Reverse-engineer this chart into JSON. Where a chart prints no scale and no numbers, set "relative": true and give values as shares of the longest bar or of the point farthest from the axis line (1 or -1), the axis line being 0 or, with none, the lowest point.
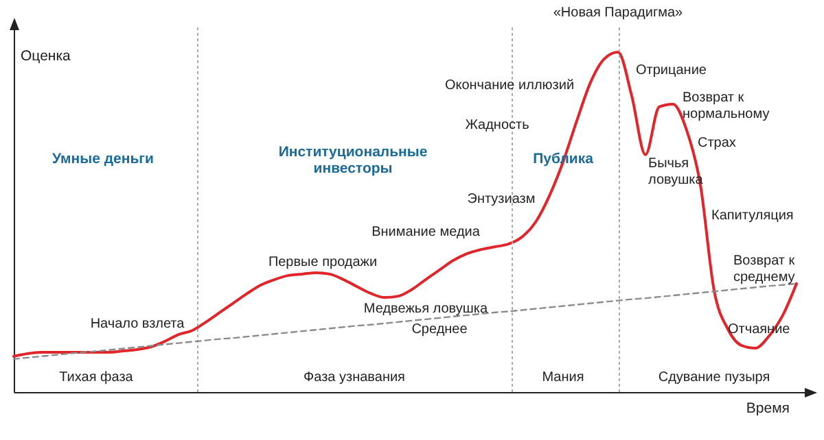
{
  "chart_data": {
    "type": "line",
    "relative": true,
    "xlabel": "Время",
    "ylabel": "Оценка",
    "categories": [
      null,
      null,
      null,
      null,
      null,
      null,
      null,
      null,
      null,
      null,
      null,
      null,
      null,
      null,
      null,
      null,
      null,
      null,
      null,
      null,
      null,
      null,
      null,
      null,
      null,
      null,
      null,
      null,
      null,
      null,
      null,
      null,
      null,
      null,
      null,
      null,
      null,
      null,
      null,
      null,
      null,
      null,
      null,
      null,
      null,
      null,
      null,
      null,
      null,
      null,
      null,
      null,
      null,
      null,
      null,
      null,
      null,
      null
    ],
    "series": [
      {
        "color": "#e0252b",
        "line_style": "solid",
        "values": [
          0.105,
          0.113,
          0.117,
          0.117,
          0.117,
          0.117,
          0.117,
          0.117,
          0.121,
          0.125,
          0.133,
          0.149,
          0.169,
          0.181,
          0.206,
          0.234,
          0.262,
          0.29,
          0.315,
          0.331,
          0.343,
          0.347,
          0.351,
          0.347,
          0.331,
          0.31,
          0.29,
          0.278,
          0.282,
          0.302,
          0.331,
          0.359,
          0.387,
          0.407,
          0.419,
          0.427,
          0.435,
          0.456,
          0.5,
          0.577,
          0.677,
          0.798,
          0.911,
          0.98,
          1,
          0.871,
          0.698,
          0.839,
          0.847,
          0.77,
          0.609,
          0.298,
          0.185,
          0.137,
          0.129,
          0.165,
          0.226,
          0.319
        ]
      },
      {
        "color": "#8c8c8c",
        "line_style": "dashed",
        "values": [
          0.097,
          0.101,
          0.105,
          0.109,
          0.113,
          0.117,
          0.12,
          0.124,
          0.128,
          0.132,
          0.136,
          0.14,
          0.144,
          0.148,
          0.152,
          0.156,
          0.159,
          0.163,
          0.167,
          0.171,
          0.175,
          0.179,
          0.183,
          0.187,
          0.191,
          0.195,
          0.198,
          0.202,
          0.206,
          0.21,
          0.214,
          0.218,
          0.222,
          0.226,
          0.23,
          0.234,
          0.237,
          0.241,
          0.245,
          0.249,
          0.253,
          0.257,
          0.261,
          0.265,
          0.269,
          0.273,
          0.276,
          0.28,
          0.284,
          0.288,
          0.292,
          0.296,
          0.3,
          0.304,
          0.308,
          0.312,
          0.315,
          0.319
        ]
      }
    ],
    "annotations": [
      "«Новая Парадигма»",
      "Отрицание",
      "Окончание иллюзий",
      "Возврат к нормальному",
      "Жадность",
      "Страх",
      "Бычья ловушка",
      "Энтузиазм",
      "Внимание медиа",
      "Капитуляция",
      "Первые продажи",
      "Возврат к среднему",
      "Начало взлета",
      "Медвежья ловушка",
      "Среднее",
      "Отчаяние",
      "Умные деньги",
      "Институциональные инвесторы",
      "Публика",
      "Тихая фаза",
      "Фаза узнавания",
      "Мания",
      "Сдувание пузыря"
    ]
  }
}
